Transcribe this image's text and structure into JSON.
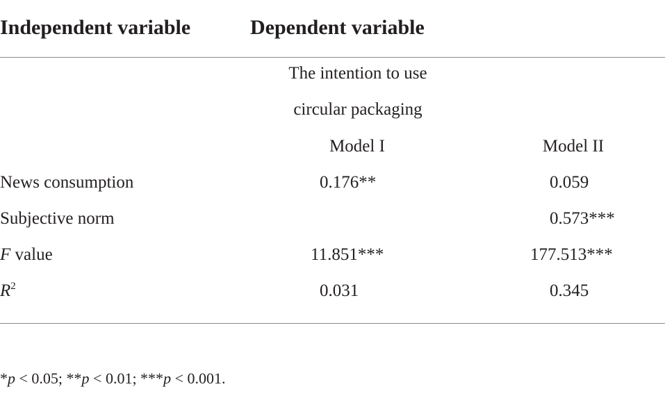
{
  "header": {
    "columns": [
      "Independent variable",
      "Dependent variable"
    ]
  },
  "table": {
    "subheader": [
      "The intention to use",
      "circular packaging"
    ],
    "models": [
      "Model I",
      "Model II"
    ],
    "rows": [
      {
        "label": "News consumption",
        "model_1": "0.176**",
        "model_2": "0.059"
      },
      {
        "label": "Subjective norm",
        "model_2": "0.573***"
      },
      {
        "label": [
          "F",
          " value"
        ],
        "model_1": "11.851***",
        "model_2": "177.513***"
      },
      {
        "label": [
          "R",
          "2"
        ],
        "model_1": "0.031",
        "model_2": "0.345"
      }
    ]
  },
  "footnote": [
    "*",
    "p",
    " < 0.05; **",
    "p",
    " < 0.01; ***",
    "p",
    " < 0.001."
  ]
}
